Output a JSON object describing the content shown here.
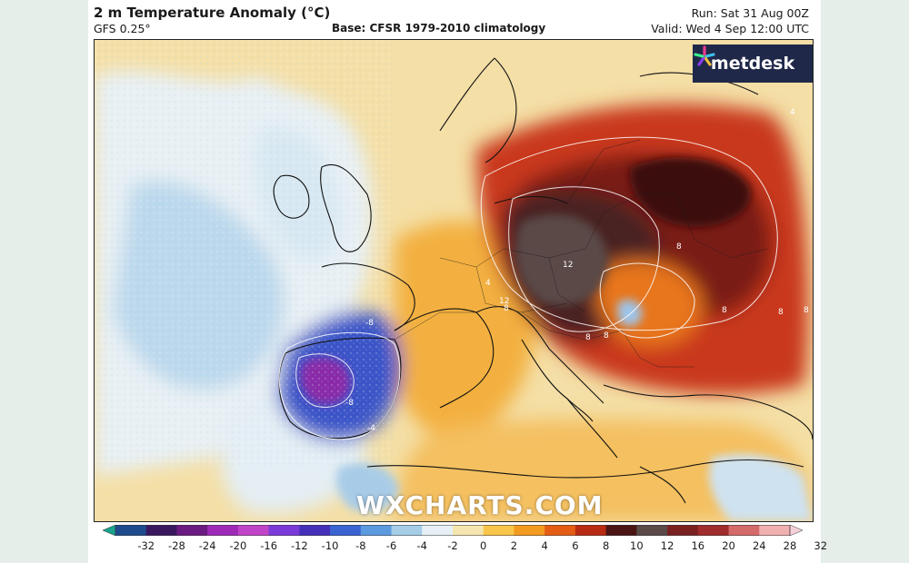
{
  "header": {
    "title": "2 m Temperature Anomaly (°C)",
    "model": "GFS 0.25°",
    "base": "Base: CFSR 1979-2010 climatology",
    "run": "Run: Sat 31 Aug 00Z",
    "valid": "Valid: Wed 4 Sep 12:00 UTC"
  },
  "logo": {
    "text": "metdesk",
    "icon": "metdesk-star-icon",
    "color": "#20284a"
  },
  "watermark": "WXCHARTS.COM",
  "map": {
    "region": "Europe",
    "variable": "2 m temperature anomaly",
    "contour_labels": [
      "4",
      "-8",
      "8",
      "12",
      "8",
      "-8",
      "12",
      "8",
      "8",
      "8",
      "-4",
      "8",
      "8",
      "4"
    ]
  },
  "colorbar": {
    "ticks": [
      "-32",
      "-28",
      "-24",
      "-20",
      "-16",
      "-12",
      "-10",
      "-8",
      "-6",
      "-4",
      "-2",
      "0",
      "2",
      "4",
      "6",
      "8",
      "10",
      "12",
      "16",
      "20",
      "24",
      "28",
      "32"
    ],
    "colors": [
      "#1aa28e",
      "#1e4b8c",
      "#3a1860",
      "#6a1a80",
      "#a02ab8",
      "#c044c8",
      "#7a3ad8",
      "#4430b8",
      "#3a64d2",
      "#5c9ae0",
      "#a6cde8",
      "#e6f0f6",
      "#f5e6b0",
      "#f8c64a",
      "#f39a20",
      "#e45c14",
      "#b82a12",
      "#4a1414",
      "#5a4a48",
      "#7a2020",
      "#a02c2c",
      "#d46a6a",
      "#f0b0b0",
      "#f6d0d8"
    ]
  }
}
